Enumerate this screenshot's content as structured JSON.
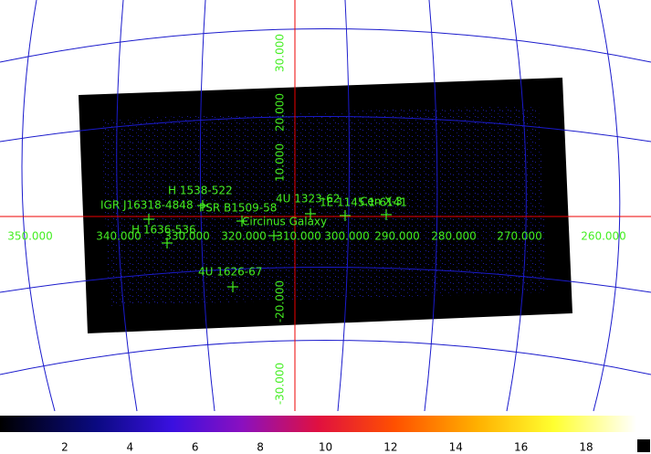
{
  "longitude_labels": [
    "350.000",
    "340.000",
    "330.000",
    "320.000",
    "310.000",
    "300.000",
    "290.000",
    "280.000",
    "270.000",
    "260.000"
  ],
  "latitude_labels": [
    "30.000",
    "20.000",
    "10.000",
    "-20.000",
    "-30.000"
  ],
  "sources": [
    "H 1538-522",
    "IGR J16318-4848",
    "PSR B1509-58",
    "Circinus Galaxy",
    "H 1636-536",
    "4U 1626-67",
    "4U 1323-62",
    "1E 1145.1-6141",
    "Cen X-3"
  ],
  "colorbar": {
    "ticks": [
      2,
      4,
      6,
      8,
      10,
      12,
      14,
      16,
      18
    ]
  }
}
